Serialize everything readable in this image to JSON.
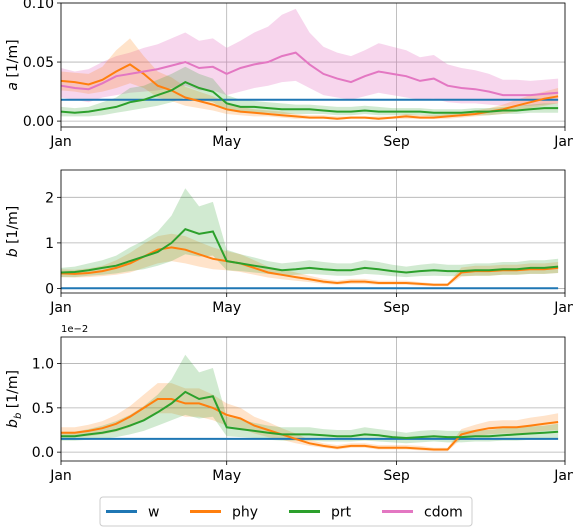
{
  "colors": {
    "w": "#1f77b4",
    "phy": "#ff7f0e",
    "prt": "#2ca02c",
    "cdom": "#e377c2"
  },
  "legend": [
    "w",
    "phy",
    "prt",
    "cdom"
  ],
  "x_ticks": [
    "Jan",
    "May",
    "Sep",
    "Jan"
  ],
  "chart_data": [
    {
      "type": "line",
      "ylabel": "a [1/m]",
      "ylim": [
        -0.005,
        0.1
      ],
      "yticks": [
        "0.00",
        "0.05",
        "0.10"
      ],
      "grid": true,
      "x_day_of_year": [
        0,
        10,
        20,
        30,
        40,
        50,
        60,
        70,
        80,
        90,
        100,
        110,
        120,
        130,
        140,
        150,
        160,
        170,
        180,
        190,
        200,
        210,
        220,
        230,
        240,
        250,
        260,
        270,
        280,
        290,
        300,
        310,
        320,
        330,
        340,
        350,
        360
      ],
      "series": [
        {
          "name": "w",
          "values": [
            0.018,
            0.018,
            0.018,
            0.018,
            0.018,
            0.018,
            0.018,
            0.018,
            0.018,
            0.018,
            0.018,
            0.018,
            0.018,
            0.018,
            0.018,
            0.018,
            0.018,
            0.018,
            0.018,
            0.018,
            0.018,
            0.018,
            0.018,
            0.018,
            0.018,
            0.018,
            0.018,
            0.018,
            0.018,
            0.018,
            0.018,
            0.018,
            0.018,
            0.018,
            0.018,
            0.018,
            0.018
          ]
        },
        {
          "name": "phy",
          "values": [
            0.034,
            0.033,
            0.031,
            0.035,
            0.042,
            0.048,
            0.04,
            0.03,
            0.026,
            0.02,
            0.017,
            0.014,
            0.01,
            0.008,
            0.007,
            0.006,
            0.005,
            0.004,
            0.003,
            0.003,
            0.002,
            0.003,
            0.003,
            0.002,
            0.003,
            0.004,
            0.003,
            0.003,
            0.004,
            0.005,
            0.006,
            0.008,
            0.01,
            0.013,
            0.016,
            0.019,
            0.021
          ],
          "lower": [
            0.026,
            0.025,
            0.023,
            0.025,
            0.028,
            0.032,
            0.028,
            0.02,
            0.017,
            0.013,
            0.011,
            0.009,
            0.006,
            0.005,
            0.004,
            0.004,
            0.003,
            0.002,
            0.002,
            0.002,
            0.001,
            0.002,
            0.002,
            0.001,
            0.002,
            0.002,
            0.002,
            0.002,
            0.002,
            0.003,
            0.004,
            0.005,
            0.006,
            0.008,
            0.011,
            0.013,
            0.015
          ],
          "upper": [
            0.042,
            0.041,
            0.04,
            0.046,
            0.06,
            0.07,
            0.055,
            0.042,
            0.037,
            0.029,
            0.025,
            0.021,
            0.015,
            0.012,
            0.01,
            0.009,
            0.008,
            0.006,
            0.005,
            0.005,
            0.004,
            0.004,
            0.004,
            0.004,
            0.004,
            0.006,
            0.005,
            0.005,
            0.006,
            0.007,
            0.009,
            0.011,
            0.014,
            0.018,
            0.022,
            0.025,
            0.028
          ]
        },
        {
          "name": "prt",
          "values": [
            0.008,
            0.007,
            0.008,
            0.01,
            0.012,
            0.016,
            0.018,
            0.022,
            0.026,
            0.033,
            0.028,
            0.025,
            0.015,
            0.012,
            0.012,
            0.011,
            0.01,
            0.01,
            0.01,
            0.009,
            0.008,
            0.008,
            0.009,
            0.008,
            0.008,
            0.008,
            0.008,
            0.007,
            0.007,
            0.007,
            0.008,
            0.008,
            0.009,
            0.009,
            0.01,
            0.011,
            0.011
          ],
          "lower": [
            0.004,
            0.004,
            0.004,
            0.005,
            0.007,
            0.009,
            0.011,
            0.013,
            0.016,
            0.02,
            0.018,
            0.016,
            0.009,
            0.007,
            0.007,
            0.007,
            0.006,
            0.006,
            0.006,
            0.006,
            0.005,
            0.005,
            0.006,
            0.005,
            0.005,
            0.005,
            0.005,
            0.004,
            0.004,
            0.004,
            0.005,
            0.005,
            0.006,
            0.006,
            0.007,
            0.007,
            0.007
          ],
          "upper": [
            0.012,
            0.011,
            0.012,
            0.016,
            0.02,
            0.028,
            0.03,
            0.035,
            0.04,
            0.046,
            0.04,
            0.036,
            0.022,
            0.018,
            0.017,
            0.016,
            0.015,
            0.014,
            0.014,
            0.013,
            0.012,
            0.012,
            0.013,
            0.012,
            0.011,
            0.011,
            0.011,
            0.01,
            0.01,
            0.01,
            0.011,
            0.011,
            0.012,
            0.013,
            0.014,
            0.015,
            0.015
          ]
        },
        {
          "name": "cdom",
          "values": [
            0.03,
            0.028,
            0.027,
            0.032,
            0.038,
            0.04,
            0.042,
            0.044,
            0.047,
            0.05,
            0.045,
            0.046,
            0.04,
            0.045,
            0.048,
            0.05,
            0.055,
            0.058,
            0.048,
            0.04,
            0.036,
            0.033,
            0.038,
            0.042,
            0.04,
            0.038,
            0.034,
            0.036,
            0.03,
            0.028,
            0.027,
            0.025,
            0.022,
            0.022,
            0.022,
            0.023,
            0.024
          ],
          "lower": [
            0.02,
            0.018,
            0.016,
            0.02,
            0.022,
            0.024,
            0.025,
            0.026,
            0.028,
            0.03,
            0.026,
            0.026,
            0.022,
            0.025,
            0.028,
            0.03,
            0.033,
            0.034,
            0.028,
            0.022,
            0.02,
            0.018,
            0.021,
            0.024,
            0.022,
            0.02,
            0.018,
            0.019,
            0.016,
            0.015,
            0.015,
            0.014,
            0.013,
            0.013,
            0.013,
            0.014,
            0.015
          ],
          "upper": [
            0.045,
            0.042,
            0.044,
            0.05,
            0.055,
            0.058,
            0.062,
            0.065,
            0.07,
            0.075,
            0.068,
            0.07,
            0.062,
            0.068,
            0.075,
            0.08,
            0.09,
            0.095,
            0.075,
            0.063,
            0.058,
            0.055,
            0.06,
            0.066,
            0.063,
            0.06,
            0.054,
            0.056,
            0.048,
            0.045,
            0.043,
            0.04,
            0.035,
            0.035,
            0.034,
            0.035,
            0.036
          ]
        }
      ]
    },
    {
      "type": "line",
      "ylabel": "b [1/m]",
      "ylim": [
        -0.1,
        2.6
      ],
      "yticks": [
        "0",
        "1",
        "2"
      ],
      "grid": true,
      "x_day_of_year": [
        0,
        10,
        20,
        30,
        40,
        50,
        60,
        70,
        80,
        90,
        100,
        110,
        120,
        130,
        140,
        150,
        160,
        170,
        180,
        190,
        200,
        210,
        220,
        230,
        240,
        250,
        260,
        270,
        280,
        290,
        300,
        310,
        320,
        330,
        340,
        350,
        360
      ],
      "series": [
        {
          "name": "w",
          "values": [
            0.003,
            0.003,
            0.003,
            0.003,
            0.003,
            0.003,
            0.003,
            0.003,
            0.003,
            0.003,
            0.003,
            0.003,
            0.003,
            0.003,
            0.003,
            0.003,
            0.003,
            0.003,
            0.003,
            0.003,
            0.003,
            0.003,
            0.003,
            0.003,
            0.003,
            0.003,
            0.003,
            0.003,
            0.003,
            0.003,
            0.003,
            0.003,
            0.003,
            0.003,
            0.003,
            0.003,
            0.003
          ]
        },
        {
          "name": "phy",
          "values": [
            0.33,
            0.32,
            0.34,
            0.38,
            0.45,
            0.55,
            0.7,
            0.85,
            0.9,
            0.85,
            0.75,
            0.65,
            0.6,
            0.55,
            0.45,
            0.35,
            0.3,
            0.25,
            0.2,
            0.15,
            0.12,
            0.15,
            0.15,
            0.12,
            0.12,
            0.12,
            0.1,
            0.08,
            0.08,
            0.35,
            0.38,
            0.38,
            0.4,
            0.4,
            0.42,
            0.42,
            0.45
          ],
          "lower": [
            0.25,
            0.24,
            0.25,
            0.27,
            0.3,
            0.35,
            0.45,
            0.55,
            0.6,
            0.55,
            0.48,
            0.42,
            0.4,
            0.36,
            0.3,
            0.24,
            0.2,
            0.17,
            0.14,
            0.1,
            0.08,
            0.1,
            0.1,
            0.08,
            0.08,
            0.08,
            0.06,
            0.05,
            0.05,
            0.26,
            0.28,
            0.28,
            0.3,
            0.3,
            0.32,
            0.32,
            0.34
          ],
          "upper": [
            0.42,
            0.41,
            0.44,
            0.5,
            0.62,
            0.78,
            0.98,
            1.15,
            1.2,
            1.15,
            1.02,
            0.9,
            0.82,
            0.75,
            0.62,
            0.48,
            0.42,
            0.35,
            0.28,
            0.21,
            0.17,
            0.21,
            0.21,
            0.17,
            0.17,
            0.17,
            0.14,
            0.11,
            0.11,
            0.46,
            0.5,
            0.5,
            0.52,
            0.52,
            0.55,
            0.55,
            0.58
          ]
        },
        {
          "name": "prt",
          "values": [
            0.35,
            0.36,
            0.4,
            0.45,
            0.5,
            0.6,
            0.7,
            0.8,
            1.0,
            1.3,
            1.2,
            1.25,
            0.6,
            0.55,
            0.5,
            0.45,
            0.4,
            0.42,
            0.45,
            0.42,
            0.4,
            0.4,
            0.45,
            0.42,
            0.38,
            0.35,
            0.38,
            0.4,
            0.38,
            0.38,
            0.4,
            0.4,
            0.42,
            0.42,
            0.45,
            0.45,
            0.48
          ],
          "lower": [
            0.25,
            0.25,
            0.28,
            0.3,
            0.33,
            0.38,
            0.42,
            0.5,
            0.6,
            0.75,
            0.7,
            0.72,
            0.4,
            0.38,
            0.35,
            0.32,
            0.28,
            0.3,
            0.32,
            0.3,
            0.28,
            0.28,
            0.32,
            0.3,
            0.27,
            0.25,
            0.27,
            0.28,
            0.27,
            0.27,
            0.28,
            0.28,
            0.3,
            0.3,
            0.32,
            0.32,
            0.34
          ],
          "upper": [
            0.45,
            0.48,
            0.55,
            0.62,
            0.72,
            0.9,
            1.05,
            1.25,
            1.6,
            2.2,
            1.8,
            1.9,
            0.85,
            0.75,
            0.68,
            0.6,
            0.55,
            0.58,
            0.62,
            0.58,
            0.55,
            0.55,
            0.62,
            0.58,
            0.52,
            0.48,
            0.52,
            0.55,
            0.52,
            0.52,
            0.55,
            0.55,
            0.58,
            0.58,
            0.62,
            0.62,
            0.65
          ]
        }
      ]
    },
    {
      "type": "line",
      "ylabel": "b_b [1/m]",
      "offset_label": "1e−2",
      "ylim": [
        -0.1,
        1.3
      ],
      "yticks": [
        "0.0",
        "0.5",
        "1.0"
      ],
      "grid": true,
      "x_day_of_year": [
        0,
        10,
        20,
        30,
        40,
        50,
        60,
        70,
        80,
        90,
        100,
        110,
        120,
        130,
        140,
        150,
        160,
        170,
        180,
        190,
        200,
        210,
        220,
        230,
        240,
        250,
        260,
        270,
        280,
        290,
        300,
        310,
        320,
        330,
        340,
        350,
        360
      ],
      "series": [
        {
          "name": "w",
          "values": [
            0.15,
            0.15,
            0.15,
            0.15,
            0.15,
            0.15,
            0.15,
            0.15,
            0.15,
            0.15,
            0.15,
            0.15,
            0.15,
            0.15,
            0.15,
            0.15,
            0.15,
            0.15,
            0.15,
            0.15,
            0.15,
            0.15,
            0.15,
            0.15,
            0.15,
            0.15,
            0.15,
            0.15,
            0.15,
            0.15,
            0.15,
            0.15,
            0.15,
            0.15,
            0.15,
            0.15,
            0.15
          ]
        },
        {
          "name": "phy",
          "values": [
            0.22,
            0.22,
            0.24,
            0.27,
            0.32,
            0.4,
            0.5,
            0.6,
            0.6,
            0.55,
            0.55,
            0.5,
            0.42,
            0.38,
            0.3,
            0.25,
            0.2,
            0.15,
            0.1,
            0.07,
            0.05,
            0.07,
            0.07,
            0.05,
            0.05,
            0.05,
            0.04,
            0.03,
            0.03,
            0.2,
            0.24,
            0.27,
            0.28,
            0.28,
            0.3,
            0.32,
            0.34
          ],
          "lower": [
            0.17,
            0.17,
            0.18,
            0.2,
            0.23,
            0.28,
            0.36,
            0.44,
            0.44,
            0.4,
            0.4,
            0.36,
            0.3,
            0.27,
            0.21,
            0.17,
            0.14,
            0.1,
            0.07,
            0.05,
            0.03,
            0.05,
            0.05,
            0.03,
            0.03,
            0.03,
            0.02,
            0.01,
            0.01,
            0.15,
            0.18,
            0.2,
            0.21,
            0.21,
            0.22,
            0.24,
            0.25
          ],
          "upper": [
            0.28,
            0.28,
            0.31,
            0.35,
            0.42,
            0.52,
            0.65,
            0.78,
            0.78,
            0.72,
            0.72,
            0.65,
            0.55,
            0.5,
            0.4,
            0.34,
            0.27,
            0.21,
            0.14,
            0.1,
            0.08,
            0.1,
            0.1,
            0.08,
            0.08,
            0.08,
            0.07,
            0.05,
            0.05,
            0.26,
            0.31,
            0.35,
            0.36,
            0.36,
            0.39,
            0.41,
            0.44
          ]
        },
        {
          "name": "prt",
          "values": [
            0.18,
            0.18,
            0.2,
            0.22,
            0.25,
            0.3,
            0.36,
            0.45,
            0.55,
            0.68,
            0.6,
            0.63,
            0.28,
            0.26,
            0.24,
            0.22,
            0.2,
            0.2,
            0.2,
            0.19,
            0.18,
            0.18,
            0.2,
            0.19,
            0.17,
            0.16,
            0.17,
            0.18,
            0.17,
            0.17,
            0.18,
            0.18,
            0.19,
            0.2,
            0.21,
            0.22,
            0.23
          ],
          "lower": [
            0.13,
            0.13,
            0.14,
            0.15,
            0.17,
            0.2,
            0.24,
            0.3,
            0.36,
            0.42,
            0.38,
            0.4,
            0.18,
            0.17,
            0.16,
            0.14,
            0.13,
            0.13,
            0.13,
            0.12,
            0.12,
            0.12,
            0.13,
            0.12,
            0.11,
            0.1,
            0.11,
            0.12,
            0.11,
            0.11,
            0.12,
            0.12,
            0.13,
            0.13,
            0.14,
            0.14,
            0.15
          ],
          "upper": [
            0.23,
            0.23,
            0.26,
            0.3,
            0.35,
            0.42,
            0.52,
            0.65,
            0.82,
            1.1,
            0.9,
            0.95,
            0.4,
            0.37,
            0.33,
            0.3,
            0.28,
            0.28,
            0.28,
            0.26,
            0.25,
            0.25,
            0.28,
            0.26,
            0.24,
            0.22,
            0.24,
            0.25,
            0.24,
            0.24,
            0.25,
            0.25,
            0.27,
            0.28,
            0.29,
            0.3,
            0.32
          ]
        }
      ]
    }
  ]
}
